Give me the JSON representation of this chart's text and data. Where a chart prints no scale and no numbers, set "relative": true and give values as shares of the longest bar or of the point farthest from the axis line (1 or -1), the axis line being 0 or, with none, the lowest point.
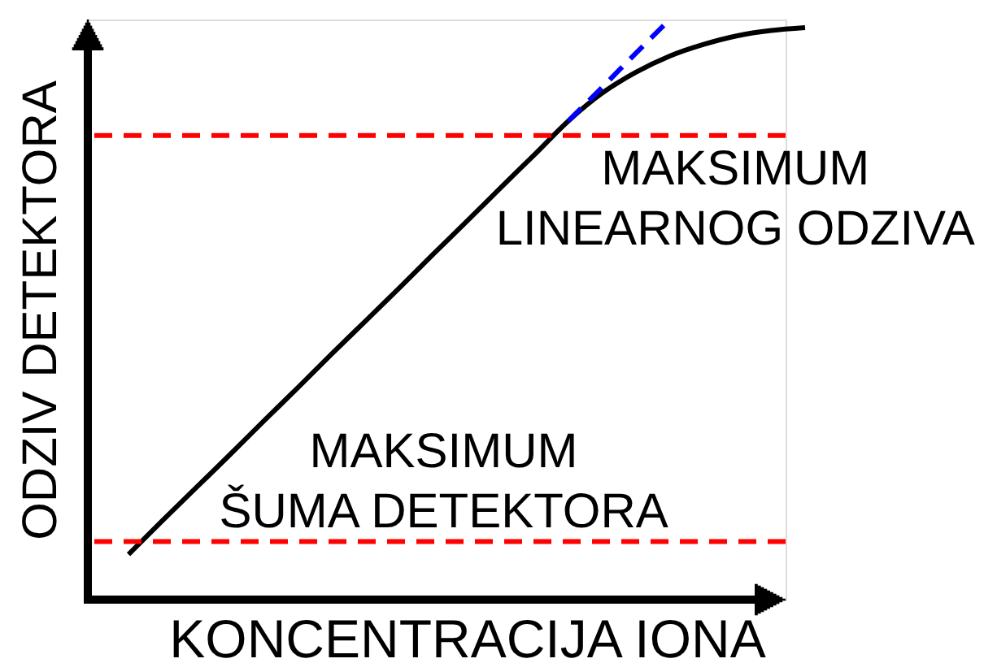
{
  "chart_data": {
    "type": "line",
    "relative": true,
    "xlabel": "KONCENTRACIJA IONA",
    "ylabel": "ODZIV DETEKTORA",
    "categories": [
      null,
      null,
      null,
      null,
      null,
      null,
      null,
      null,
      null,
      null,
      null,
      null,
      null,
      null,
      null,
      null,
      null,
      null,
      null,
      null,
      null
    ],
    "series": [
      {
        "color": "#000000",
        "line_style": "solid",
        "values": [
          0.078,
          0.136,
          0.193,
          0.25,
          0.308,
          0.365,
          0.423,
          0.48,
          0.537,
          0.595,
          0.652,
          0.71,
          0.767,
          0.825,
          0.873,
          0.909,
          0.937,
          0.957,
          0.972,
          0.981,
          0.986
        ]
      },
      {
        "color": "#0000ff",
        "line_style": "dashed",
        "values": [
          null,
          null,
          null,
          null,
          null,
          null,
          null,
          null,
          null,
          null,
          null,
          null,
          null,
          0.825,
          0.883,
          0.942,
          1.0,
          null,
          null,
          null,
          null
        ]
      }
    ],
    "ref_lines": [
      {
        "axis": "y",
        "value": 0.8,
        "label": "MAKSIMUM\nLINEARNOG ODZIVA",
        "color": "#ff0000",
        "line_style": "dashed"
      },
      {
        "axis": "y",
        "value": 0.1,
        "label": "MAKSIMUM\nŠUMA DETEKTORA",
        "color": "#ff0000",
        "line_style": "dashed"
      }
    ]
  }
}
